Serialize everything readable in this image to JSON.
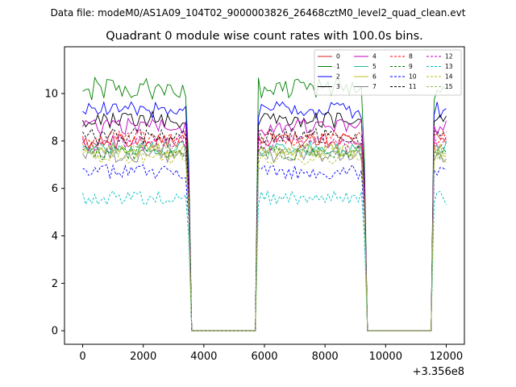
{
  "figure": {
    "suptitle": "Data file: modeM0/AS1A09_104T02_9000003826_26468cztM0_level2_quad_clean.evt",
    "title": "Quadrant 0 module wise count rates with 100.0s bins."
  },
  "chart_data": {
    "type": "line",
    "title": "Quadrant 0 module wise count rates with 100.0s bins.",
    "xlabel": "",
    "ylabel": "",
    "x_offset_label": "+3.356e8",
    "xlim": [
      -600,
      12600
    ],
    "ylim": [
      -0.57,
      11.97
    ],
    "xticks": [
      0,
      2000,
      4000,
      6000,
      8000,
      10000,
      12000
    ],
    "xtick_labels": [
      "0",
      "2000",
      "4000",
      "6000",
      "8000",
      "10000",
      "12000"
    ],
    "yticks": [
      0,
      2,
      4,
      6,
      8,
      10
    ],
    "ytick_labels": [
      "0",
      "2",
      "4",
      "6",
      "8",
      "10"
    ],
    "grid": false,
    "legend_position": "top-right",
    "segments": [
      {
        "start": 0,
        "end": 3500
      },
      {
        "start": 5800,
        "end": 9300
      },
      {
        "start": 11600,
        "end": 12000
      }
    ],
    "gap_value": 0,
    "bin_width": 100,
    "series": [
      {
        "name": "0",
        "color": "#d62020",
        "dash": "solid",
        "level": 8.0,
        "noise": 0.35
      },
      {
        "name": "1",
        "color": "#008000",
        "dash": "solid",
        "level": 10.2,
        "noise": 0.5
      },
      {
        "name": "2",
        "color": "#0000ff",
        "dash": "solid",
        "level": 9.3,
        "noise": 0.35
      },
      {
        "name": "3",
        "color": "#000000",
        "dash": "solid",
        "level": 8.9,
        "noise": 0.35
      },
      {
        "name": "4",
        "color": "#bf00bf",
        "dash": "solid",
        "level": 8.6,
        "noise": 0.35
      },
      {
        "name": "5",
        "color": "#1abc9c",
        "dash": "solid",
        "level": 7.7,
        "noise": 0.3
      },
      {
        "name": "6",
        "color": "#bcbd22",
        "dash": "solid",
        "level": 7.6,
        "noise": 0.3
      },
      {
        "name": "7",
        "color": "#808080",
        "dash": "solid",
        "level": 7.4,
        "noise": 0.3
      },
      {
        "name": "8",
        "color": "#ff0000",
        "dash": "dashed",
        "level": 8.1,
        "noise": 0.35
      },
      {
        "name": "9",
        "color": "#008000",
        "dash": "dashed",
        "level": 7.5,
        "noise": 0.3
      },
      {
        "name": "10",
        "color": "#0000ff",
        "dash": "dashed",
        "level": 6.7,
        "noise": 0.3
      },
      {
        "name": "11",
        "color": "#000000",
        "dash": "dashed",
        "level": 8.2,
        "noise": 0.35
      },
      {
        "name": "12",
        "color": "#bf00bf",
        "dash": "dashed",
        "level": 7.9,
        "noise": 0.35
      },
      {
        "name": "13",
        "color": "#00bfbf",
        "dash": "dashed",
        "level": 5.6,
        "noise": 0.3
      },
      {
        "name": "14",
        "color": "#bcbd22",
        "dash": "dashed",
        "level": 7.3,
        "noise": 0.3
      },
      {
        "name": "15",
        "color": "#8fbc5f",
        "dash": "dashed",
        "level": 7.6,
        "noise": 0.3
      }
    ]
  }
}
